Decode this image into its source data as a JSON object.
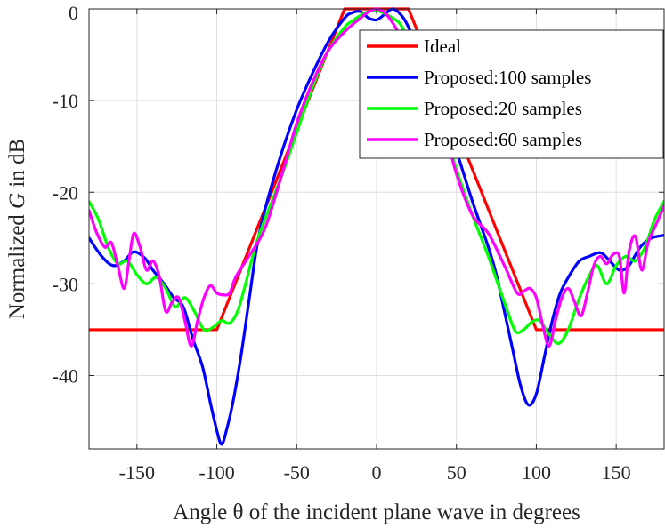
{
  "chart_data": {
    "type": "line",
    "title": "",
    "xlabel": "Angle θ of the incident plane wave in degrees",
    "ylabel_prefix": "Normalized ",
    "ylabel_var": "G",
    "ylabel_suffix": " in dB",
    "xlim": [
      -180,
      180
    ],
    "ylim": [
      -48,
      0
    ],
    "xticks": [
      -150,
      -100,
      -50,
      0,
      50,
      100,
      150
    ],
    "yticks": [
      0,
      -10,
      -20,
      -30,
      -40
    ],
    "grid": true,
    "legend_position": "top-right",
    "series": [
      {
        "name": "Ideal",
        "color": "#ff0000",
        "x": [
          -180,
          -100,
          -20,
          20,
          100,
          180
        ],
        "y": [
          -35,
          -35,
          0,
          0,
          -35,
          -35
        ]
      },
      {
        "name": "Proposed:100 samples",
        "color": "#0000ff",
        "x": [
          -180,
          -172,
          -165,
          -158,
          -152,
          -145,
          -140,
          -133,
          -127,
          -121,
          -115,
          -109,
          -104,
          -100,
          -97,
          -94,
          -90,
          -85,
          -80,
          -75,
          -70,
          -60,
          -50,
          -40,
          -30,
          -20,
          -15,
          -10,
          -5,
          0,
          5,
          10,
          15,
          20,
          30,
          40,
          50,
          60,
          70,
          75,
          80,
          85,
          90,
          95,
          100,
          105,
          110,
          115,
          121,
          127,
          133,
          140,
          145,
          152,
          158,
          165,
          172,
          180
        ],
        "y": [
          -25,
          -27,
          -28,
          -27.5,
          -26.5,
          -27.2,
          -28.5,
          -30,
          -31.5,
          -32.5,
          -36,
          -39,
          -43,
          -46,
          -47.5,
          -46,
          -43,
          -38,
          -32,
          -26,
          -22,
          -16,
          -11,
          -7,
          -3.5,
          -1,
          -0.4,
          -0.3,
          -1,
          -1.2,
          -0.6,
          0,
          -0.6,
          -2,
          -6,
          -10.5,
          -15.5,
          -21,
          -26,
          -29,
          -33,
          -37,
          -41,
          -43.2,
          -42,
          -38,
          -34,
          -31,
          -29,
          -27.5,
          -27,
          -26.6,
          -27.3,
          -28.5,
          -28,
          -26,
          -25,
          -24.7
        ]
      },
      {
        "name": "Proposed:20 samples",
        "color": "#00ff00",
        "x": [
          -180,
          -174,
          -168,
          -162,
          -156,
          -150,
          -144,
          -138,
          -132,
          -126,
          -120,
          -114,
          -108,
          -102,
          -97,
          -92,
          -87,
          -82,
          -76,
          -70,
          -60,
          -50,
          -40,
          -30,
          -20,
          -15,
          -10,
          -5,
          0,
          5,
          10,
          15,
          20,
          30,
          40,
          50,
          60,
          70,
          76,
          82,
          87,
          92,
          97,
          102,
          108,
          114,
          120,
          126,
          132,
          138,
          144,
          150,
          156,
          162,
          168,
          174,
          180
        ],
        "y": [
          -21,
          -23,
          -26,
          -27.8,
          -27.5,
          -29,
          -30,
          -29.3,
          -30.5,
          -32.5,
          -31.5,
          -33,
          -35,
          -34.7,
          -34,
          -34.3,
          -33,
          -30,
          -26,
          -23,
          -18.5,
          -13.5,
          -8.5,
          -4.5,
          -2,
          -1.3,
          -0.7,
          -0.3,
          -0.2,
          -0.5,
          -1,
          -1.7,
          -3.5,
          -7.5,
          -12,
          -17.5,
          -22.5,
          -27,
          -30,
          -33,
          -35.2,
          -35,
          -34.2,
          -34,
          -35.5,
          -36.5,
          -35,
          -32,
          -29.5,
          -28,
          -30,
          -28,
          -27,
          -27.5,
          -26,
          -23,
          -21
        ]
      },
      {
        "name": "Proposed:60 samples",
        "color": "#ff00ff",
        "x": [
          -180,
          -175,
          -170,
          -166,
          -162,
          -158,
          -155,
          -152,
          -148,
          -144,
          -140,
          -136,
          -132,
          -128,
          -124,
          -120,
          -116,
          -112,
          -108,
          -104,
          -100,
          -96,
          -92,
          -88,
          -80,
          -70,
          -60,
          -50,
          -40,
          -30,
          -20,
          -15,
          -10,
          -5,
          0,
          5,
          10,
          15,
          20,
          30,
          40,
          50,
          60,
          70,
          80,
          88,
          92,
          96,
          100,
          104,
          108,
          112,
          116,
          120,
          124,
          128,
          132,
          136,
          140,
          144,
          148,
          152,
          155,
          158,
          162,
          166,
          170,
          175,
          180
        ],
        "y": [
          -22,
          -24.5,
          -26,
          -25.5,
          -28,
          -30.5,
          -27.5,
          -24.5,
          -26,
          -28.5,
          -27.5,
          -29.2,
          -33,
          -32,
          -31.5,
          -34,
          -36.8,
          -34,
          -31.5,
          -30.2,
          -31,
          -31.2,
          -31,
          -29.2,
          -27,
          -24,
          -18.5,
          -12.5,
          -8,
          -4.5,
          -2.5,
          -1.7,
          -1,
          -0.3,
          0,
          -0.4,
          -1.5,
          -3,
          -4.8,
          -7.5,
          -11.5,
          -18,
          -22.5,
          -24.5,
          -28,
          -31,
          -30.8,
          -30.5,
          -31.5,
          -34.5,
          -36.8,
          -34,
          -31.5,
          -30.5,
          -32,
          -33.5,
          -31,
          -28,
          -27,
          -27.8,
          -26.8,
          -27,
          -31,
          -26.5,
          -24.8,
          -28.5,
          -25.5,
          -23.5,
          -21.5
        ]
      }
    ]
  }
}
